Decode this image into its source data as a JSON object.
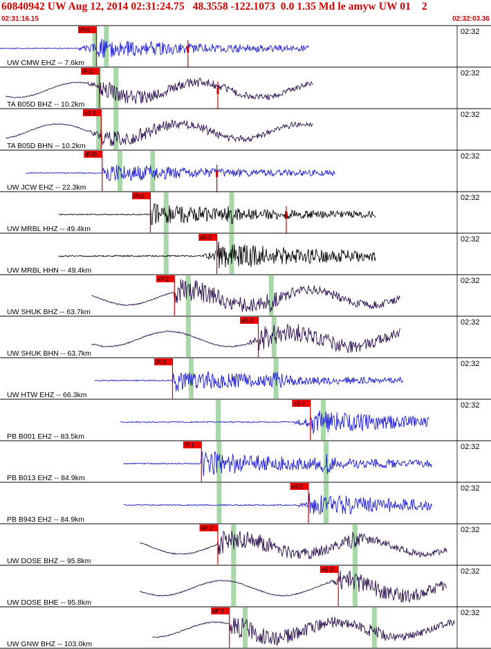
{
  "header": {
    "title": "60840942 UW Aug 12, 2014 02:31:24.75   48.3558 -122.1073  0.0 1.35 Md le amyw UW 01    2",
    "start_time": "02:31:16.15",
    "end_time": "02:32:03.36"
  },
  "colors": {
    "header_text": "#d40000",
    "pick_box": "#ee0000",
    "pick_line": "#cc0000",
    "shade": "#a8d8a8",
    "trace_blue": "#1a1adc",
    "trace_black": "#000000",
    "trace_dark": "#2a0c4e",
    "theoretical_curve": "#cc0000"
  },
  "chart_data": {
    "type": "seismogram_record_section",
    "title": "60840942 UW Aug 12, 2014 02:31:24.75   48.3558 -122.1073  0.0 1.35 Md le amyw UW 01    2",
    "x_axis": {
      "unit": "s",
      "range": [
        0,
        47.21
      ],
      "start_label": "02:31:16.15",
      "end_label": "02:32:03.36"
    },
    "traces": [
      {
        "label": "UW CMW EHZ -- 7.6km",
        "net": "UW",
        "sta": "CMW",
        "chan": "EHZ",
        "dist_km": 7.6,
        "minute": "02:32",
        "color": "blue",
        "start": 0.0,
        "end": 32.0,
        "p_shade": 9.8,
        "s_shade": 11.0,
        "picks": [
          {
            "phase": "iPc0",
            "time": 10.0
          }
        ],
        "markers": [
          19.5
        ],
        "amp": 0.18
      },
      {
        "label": "TA B05D BHZ -- 10.2km",
        "net": "TA",
        "sta": "B05D",
        "chan": "BHZ",
        "dist_km": 10.2,
        "minute": "02:32",
        "color": "dark",
        "start": 0.6,
        "end": 32.5,
        "p_shade": 10.2,
        "s_shade": 12.0,
        "picks": [
          {
            "phase": "iPd1",
            "time": 10.3
          }
        ],
        "markers": [
          22.6
        ],
        "amp": 0.16
      },
      {
        "label": "TA B05D BHN -- 10.2km",
        "net": "TA",
        "sta": "B05D",
        "chan": "BHN",
        "dist_km": 10.2,
        "minute": "02:32",
        "color": "dark",
        "start": 0.6,
        "end": 32.5,
        "p_shade": 10.2,
        "s_shade": 12.0,
        "picks": [
          {
            "phase": "eS 1",
            "time": 10.5
          }
        ],
        "markers": [],
        "amp": 0.16
      },
      {
        "label": "UW JCW EHZ -- 22.3km",
        "net": "UW",
        "sta": "JCW",
        "chan": "EHZ",
        "dist_km": 22.3,
        "minute": "02:32",
        "color": "blue",
        "start": 2.7,
        "end": 34.8,
        "p_shade": 12.4,
        "s_shade": 15.8,
        "picks": [
          {
            "phase": "iPd0",
            "time": 10.6
          }
        ],
        "markers": [
          22.5
        ],
        "amp": 0.18
      },
      {
        "label": "UW MRBL HHZ -- 49.4km",
        "net": "UW",
        "sta": "MRBL",
        "chan": "HHZ",
        "dist_km": 49.4,
        "minute": "02:32",
        "color": "black",
        "start": 6.1,
        "end": 39.0,
        "p_shade": 17.2,
        "s_shade": 24.0,
        "picks": [
          {
            "phase": "iPd1",
            "time": 15.6
          }
        ],
        "markers": [
          29.7
        ],
        "amp": 0.2
      },
      {
        "label": "UW MRBL HHN -- 49.4km",
        "net": "UW",
        "sta": "MRBL",
        "chan": "HHN",
        "dist_km": 49.4,
        "minute": "02:32",
        "color": "black",
        "start": 6.1,
        "end": 39.0,
        "p_shade": 17.2,
        "s_shade": 24.0,
        "picks": [
          {
            "phase": "eS 2",
            "time": 22.5
          }
        ],
        "markers": [],
        "amp": 0.26
      },
      {
        "label": "UW SHUK BHZ -- 63.7km",
        "net": "UW",
        "sta": "SHUK",
        "chan": "BHZ",
        "dist_km": 63.7,
        "minute": "02:32",
        "color": "dark",
        "start": 9.5,
        "end": 41.5,
        "p_shade": 19.5,
        "s_shade": 28.1,
        "picks": [
          {
            "phase": "eP 2",
            "time": 18.1
          }
        ],
        "markers": [],
        "amp": 0.22
      },
      {
        "label": "UW SHUK BHN -- 63.7km",
        "net": "UW",
        "sta": "SHUK",
        "chan": "BHN",
        "dist_km": 63.7,
        "minute": "02:32",
        "color": "dark",
        "start": 9.5,
        "end": 41.5,
        "p_shade": 19.5,
        "s_shade": 28.4,
        "picks": [
          {
            "phase": "eS 2",
            "time": 26.8
          }
        ],
        "markers": [],
        "amp": 0.22
      },
      {
        "label": "UW HTW EHZ -- 66.3km",
        "net": "UW",
        "sta": "HTW",
        "chan": "EHZ",
        "dist_km": 66.3,
        "minute": "02:32",
        "color": "blue",
        "start": 9.8,
        "end": 41.8,
        "p_shade": 19.8,
        "s_shade": 28.6,
        "picks": [
          {
            "phase": "iPc1",
            "time": 17.9
          }
        ],
        "markers": [],
        "amp": 0.2
      },
      {
        "label": "PB B001 EH2 -- 83.5km",
        "net": "PB",
        "sta": "B001",
        "chan": "EH2",
        "dist_km": 83.5,
        "minute": "02:32",
        "color": "blue",
        "start": 12.5,
        "end": 44.5,
        "p_shade": 22.6,
        "s_shade": 33.5,
        "picks": [
          {
            "phase": "eS 2",
            "time": 32.2
          }
        ],
        "markers": [],
        "amp": 0.22
      },
      {
        "label": "PB B013 EHZ -- 84.9km",
        "net": "PB",
        "sta": "B013",
        "chan": "EHZ",
        "dist_km": 84.9,
        "minute": "02:32",
        "color": "blue",
        "start": 12.8,
        "end": 44.8,
        "p_shade": 22.7,
        "s_shade": 33.8,
        "picks": [
          {
            "phase": "iP 1",
            "time": 20.9
          }
        ],
        "markers": [],
        "amp": 0.23
      },
      {
        "label": "PB B943 EH2 -- 84.9km",
        "net": "PB",
        "sta": "B943",
        "chan": "EH2",
        "dist_km": 84.9,
        "minute": "02:32",
        "color": "blue",
        "start": 12.8,
        "end": 44.8,
        "p_shade": 22.7,
        "s_shade": 33.8,
        "picks": [
          {
            "phase": "eS 2",
            "time": 32.0
          }
        ],
        "markers": [],
        "amp": 0.22
      },
      {
        "label": "UW DOSE BHZ -- 95.8km",
        "net": "UW",
        "sta": "DOSE",
        "chan": "BHZ",
        "dist_km": 95.8,
        "minute": "02:32",
        "color": "dark",
        "start": 14.5,
        "end": 46.4,
        "p_shade": 24.2,
        "s_shade": 36.8,
        "picks": [
          {
            "phase": "eP 2",
            "time": 22.6
          }
        ],
        "markers": [],
        "amp": 0.2
      },
      {
        "label": "UW DOSE BHE -- 95.8km",
        "net": "UW",
        "sta": "DOSE",
        "chan": "BHE",
        "dist_km": 95.8,
        "minute": "02:32",
        "color": "dark",
        "start": 14.5,
        "end": 46.4,
        "p_shade": 24.2,
        "s_shade": 36.8,
        "picks": [
          {
            "phase": "eS 2",
            "time": 35.1
          }
        ],
        "markers": [],
        "amp": 0.2
      },
      {
        "label": "UW GNW BHZ -- 103.0km",
        "net": "UW",
        "sta": "GNW",
        "chan": "BHZ",
        "dist_km": 103.0,
        "minute": "02:32",
        "color": "dark",
        "start": 15.8,
        "end": 47.2,
        "p_shade": 25.4,
        "s_shade": 38.8,
        "picks": [
          {
            "phase": "eP 2",
            "time": 23.8
          }
        ],
        "markers": [],
        "amp": 0.2
      }
    ]
  }
}
